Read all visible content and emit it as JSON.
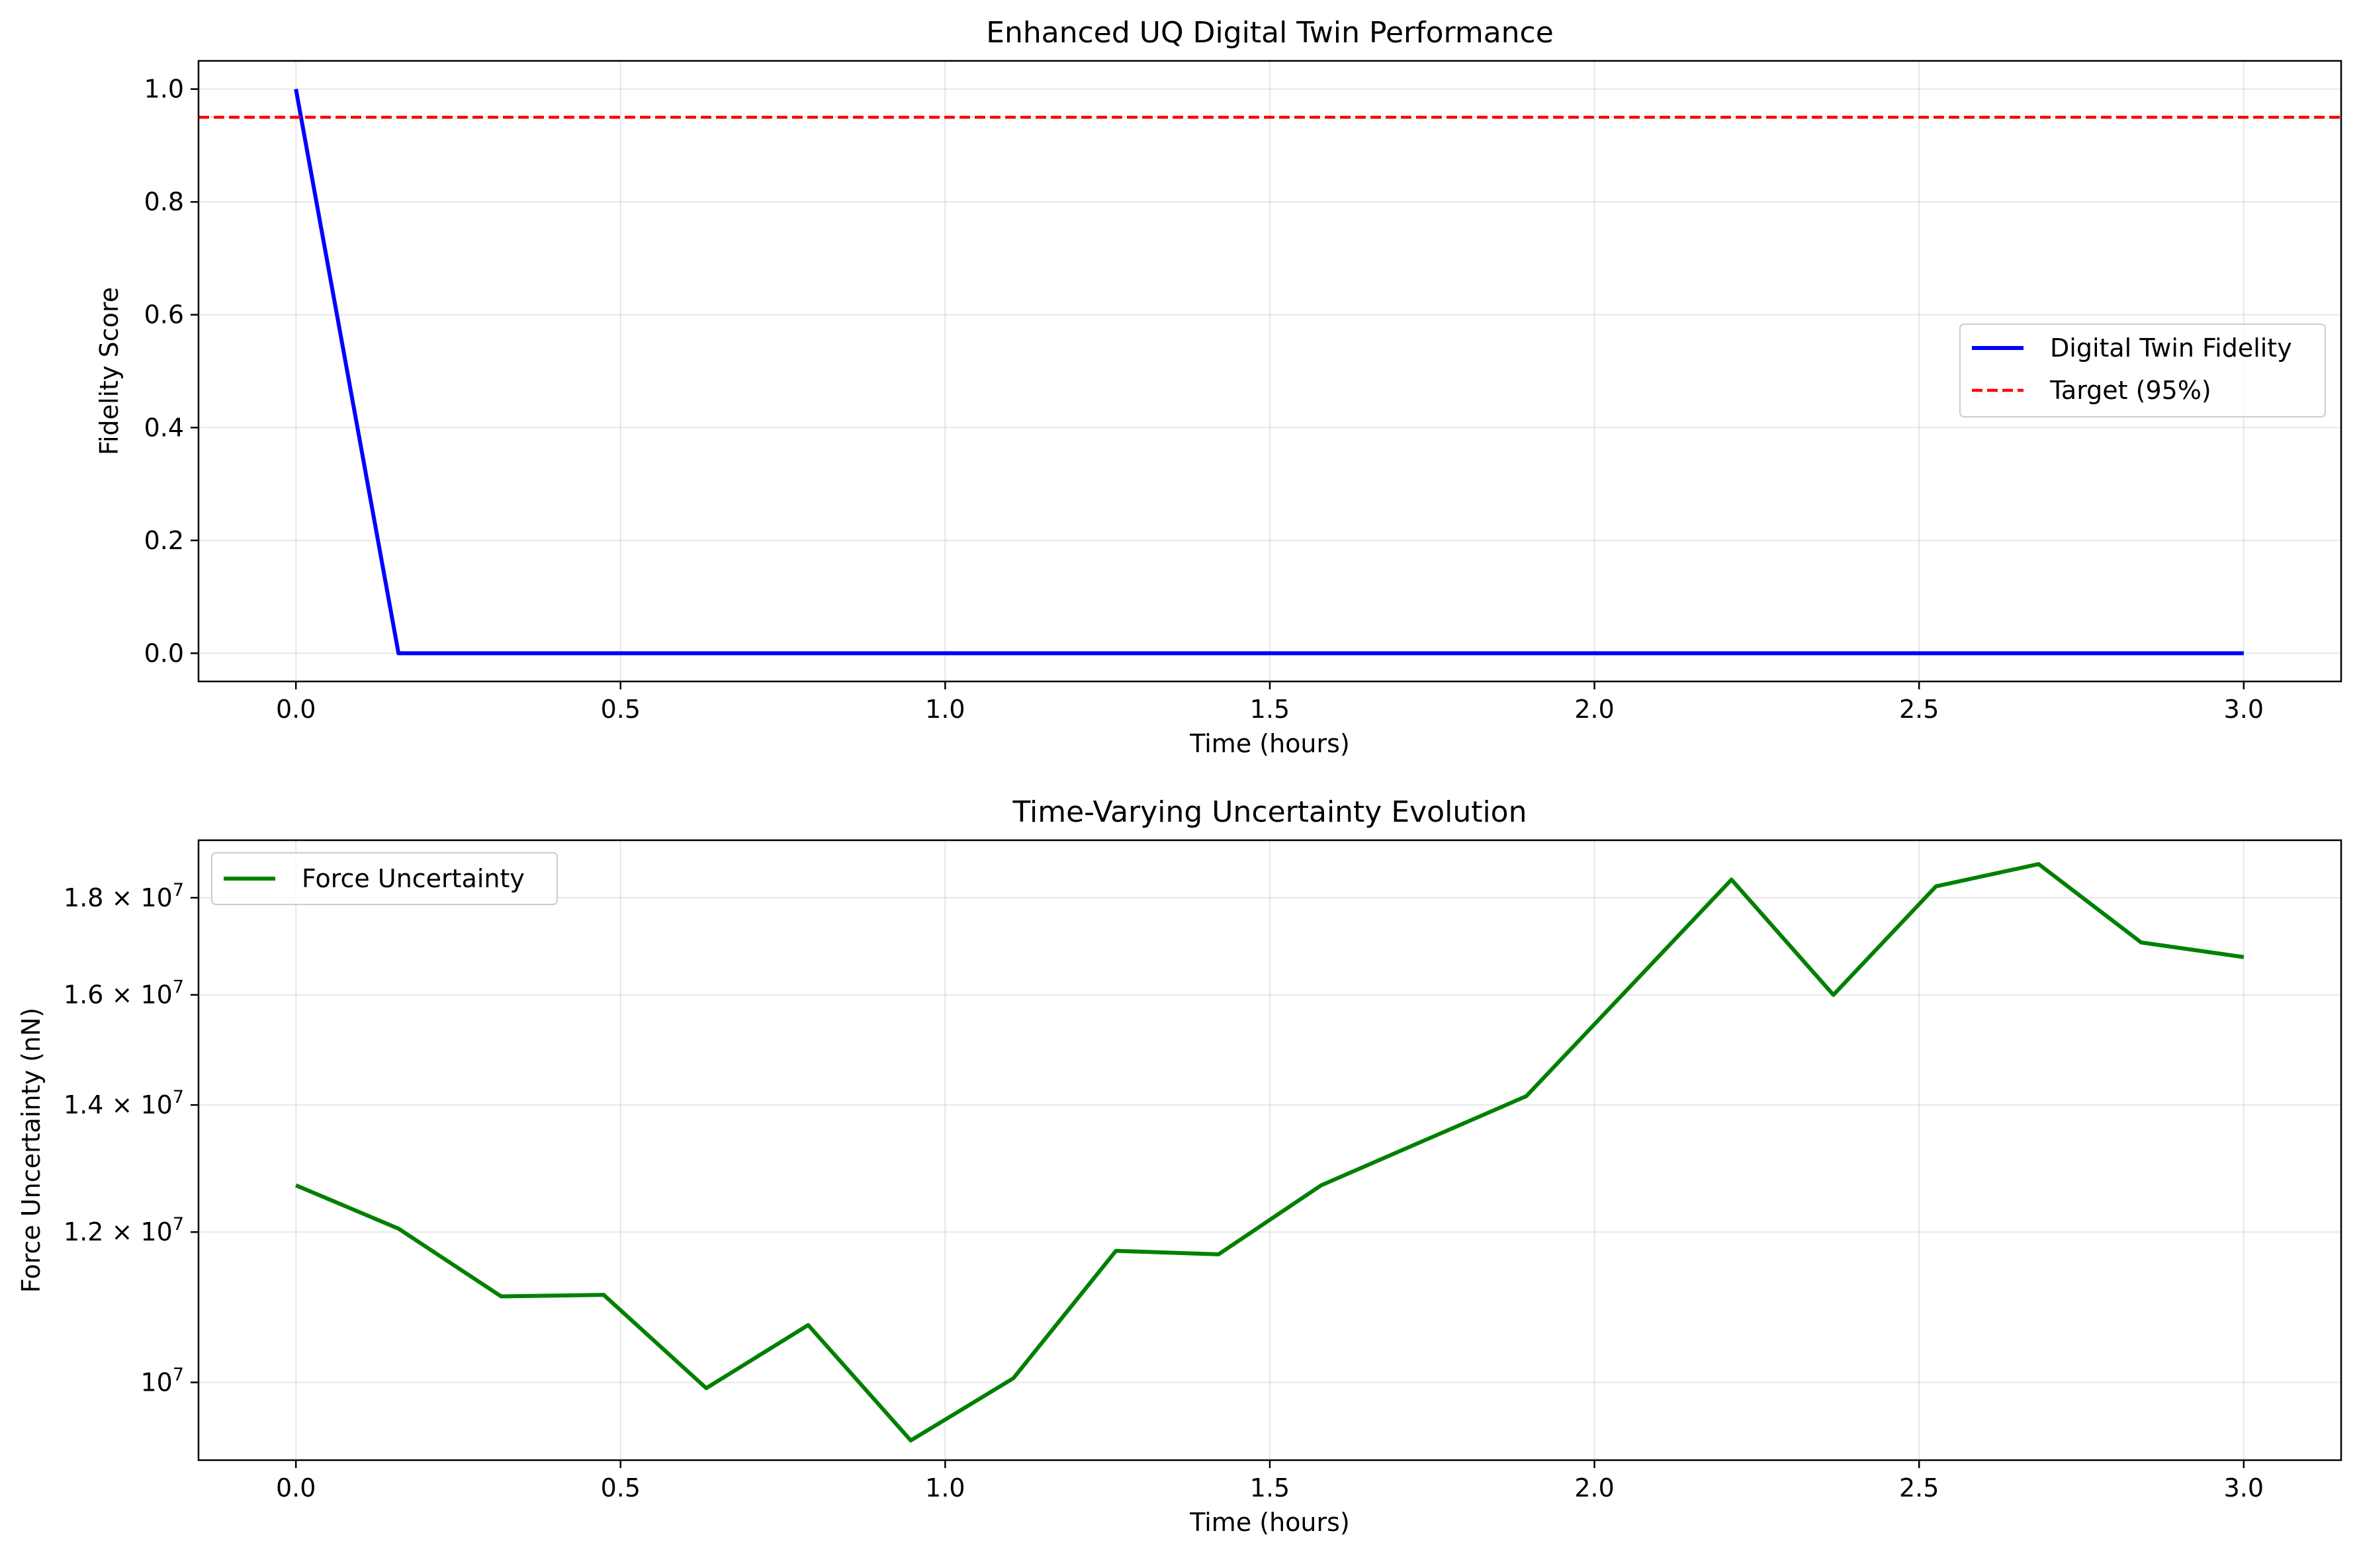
{
  "chart_data": [
    {
      "type": "line",
      "title": "Enhanced UQ Digital Twin Performance",
      "xlabel": "Time (hours)",
      "ylabel": "Fidelity Score",
      "xlim": [
        -0.15,
        3.15
      ],
      "ylim": [
        -0.05,
        1.05
      ],
      "xticks": [
        "0.0",
        "0.5",
        "1.0",
        "1.5",
        "2.0",
        "2.5",
        "3.0"
      ],
      "yticks": [
        "0.0",
        "0.2",
        "0.4",
        "0.6",
        "0.8",
        "1.0"
      ],
      "grid": true,
      "legend_position": "center-right",
      "series": [
        {
          "name": "Digital Twin Fidelity",
          "color": "#0000ff",
          "style": "solid",
          "x": [
            0.0,
            0.158,
            0.316,
            0.474,
            0.632,
            0.789,
            0.947,
            1.105,
            1.263,
            1.421,
            1.579,
            1.737,
            1.895,
            2.053,
            2.211,
            2.368,
            2.526,
            2.684,
            2.842,
            3.0
          ],
          "y": [
            1.0,
            0,
            0,
            0,
            0,
            0,
            0,
            0,
            0,
            0,
            0,
            0,
            0,
            0,
            0,
            0,
            0,
            0,
            0,
            0
          ]
        },
        {
          "name": "Target (95%)",
          "color": "#ff0000",
          "style": "dashed",
          "y_constant": 0.95
        }
      ]
    },
    {
      "type": "line",
      "title": "Time-Varying Uncertainty Evolution",
      "xlabel": "Time (hours)",
      "ylabel": "Force Uncertainty (nN)",
      "yscale": "log",
      "xlim": [
        -0.15,
        3.15
      ],
      "ylim": [
        9100000,
        19300000
      ],
      "xticks": [
        "0.0",
        "0.5",
        "1.0",
        "1.5",
        "2.0",
        "2.5",
        "3.0"
      ],
      "yticks": [
        {
          "value": 10000000,
          "mantissa": "",
          "exponent": "7"
        },
        {
          "value": 12000000,
          "mantissa": "1.2",
          "exponent": "7"
        },
        {
          "value": 14000000,
          "mantissa": "1.4",
          "exponent": "7"
        },
        {
          "value": 16000000,
          "mantissa": "1.6",
          "exponent": "7"
        },
        {
          "value": 18000000,
          "mantissa": "1.8",
          "exponent": "7"
        }
      ],
      "grid": true,
      "legend_position": "upper-left",
      "series": [
        {
          "name": "Force Uncertainty",
          "color": "#008000",
          "style": "solid",
          "x": [
            0.0,
            0.158,
            0.316,
            0.474,
            0.632,
            0.789,
            0.947,
            1.105,
            1.263,
            1.421,
            1.579,
            1.895,
            2.211,
            2.368,
            2.526,
            2.684,
            2.842,
            3.0
          ],
          "y": [
            12700000,
            12050000,
            11100000,
            11120000,
            9930000,
            10720000,
            9320000,
            10050000,
            11730000,
            11680000,
            12700000,
            14150000,
            18400000,
            16000000,
            18250000,
            18750000,
            17050000,
            16750000
          ]
        }
      ]
    }
  ]
}
